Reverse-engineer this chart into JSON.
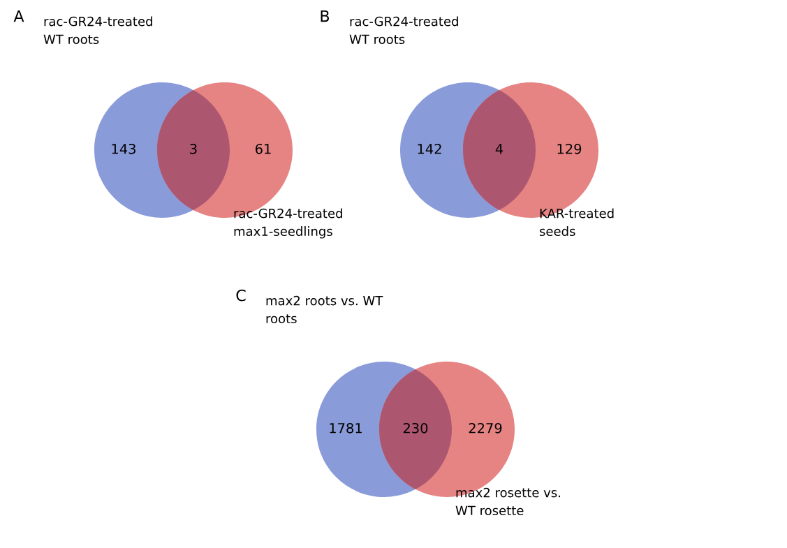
{
  "chart_data": [
    {
      "type": "other",
      "title": "A",
      "categories": [
        null,
        null,
        null
      ],
      "values": [
        143,
        3,
        61
      ],
      "colors": [
        "#8a9bd9",
        "#ad5670",
        "#e68383"
      ],
      "data_labels": true,
      "annotations": [
        "rac-GR24-treated\nWT roots",
        "rac-GR24-treated\nmax1-seedlings"
      ]
    },
    {
      "type": "other",
      "title": "B",
      "categories": [
        null,
        null,
        null
      ],
      "values": [
        142,
        4,
        129
      ],
      "colors": [
        "#8a9bd9",
        "#ad5670",
        "#e68383"
      ],
      "data_labels": true,
      "annotations": [
        "rac-GR24-treated\nWT roots",
        "KAR-treated\nseeds"
      ]
    },
    {
      "type": "other",
      "title": "C",
      "categories": [
        null,
        null,
        null
      ],
      "values": [
        1781,
        230,
        2279
      ],
      "colors": [
        "#8a9bd9",
        "#ad5670",
        "#e68383"
      ],
      "data_labels": true,
      "annotations": [
        "max2 roots vs. WT\nroots",
        "max2 rosette vs.\nWT rosette"
      ]
    }
  ]
}
